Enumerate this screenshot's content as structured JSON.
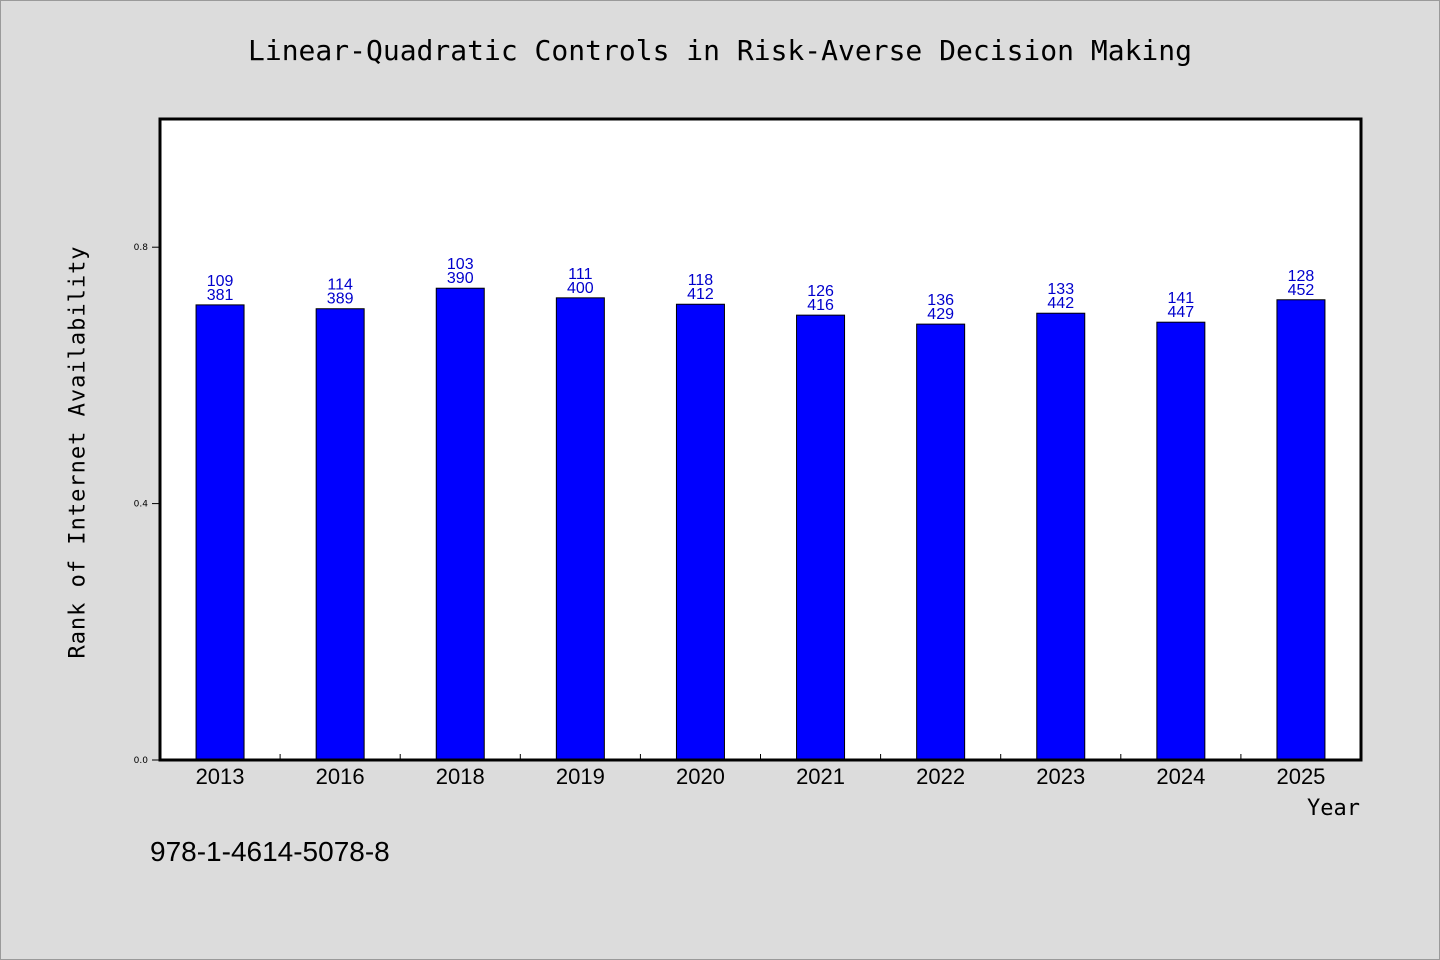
{
  "chart_data": {
    "type": "bar",
    "title": "Linear-Quadratic Controls in Risk-Averse Decision Making",
    "xlabel": "Year",
    "ylabel": "Rank of Internet Availability",
    "categories": [
      "2013",
      "2016",
      "2018",
      "2019",
      "2020",
      "2021",
      "2022",
      "2023",
      "2024",
      "2025"
    ],
    "values": [
      0.71,
      0.704,
      0.736,
      0.721,
      0.711,
      0.694,
      0.68,
      0.697,
      0.683,
      0.718
    ],
    "labels_top": [
      "109",
      "114",
      "103",
      "111",
      "118",
      "126",
      "136",
      "133",
      "141",
      "128"
    ],
    "labels_bottom": [
      "381",
      "389",
      "390",
      "400",
      "412",
      "416",
      "429",
      "442",
      "447",
      "452"
    ],
    "ylim": [
      0,
      1.0
    ],
    "yticks": [
      0.0,
      0.4,
      0.8
    ],
    "ytick_labels": [
      "0.0",
      "0.4",
      "0.8"
    ],
    "grid": false,
    "bar_color": "#0000ff",
    "label_color": "#0000cc"
  },
  "footer": {
    "code": "978-1-4614-5078-8"
  },
  "colors": {
    "background": "#dcdcdc",
    "plot_background": "#ffffff"
  }
}
